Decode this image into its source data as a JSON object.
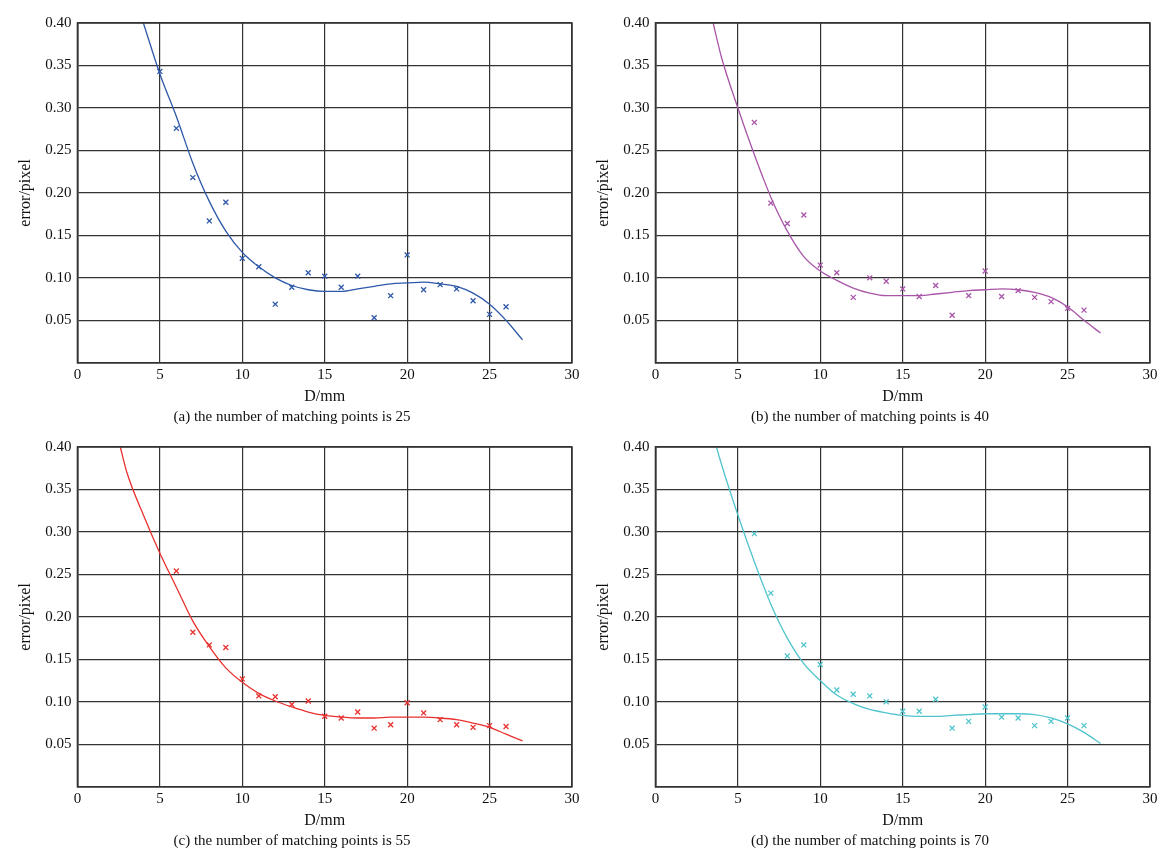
{
  "chart_data": [
    {
      "type": "scatter",
      "title": "(a) the number of matching points is 25",
      "xlabel": "D/mm",
      "ylabel": "error/pixel",
      "xlim": [
        0,
        30
      ],
      "xticks": [
        0,
        5,
        10,
        15,
        20,
        25,
        30
      ],
      "ylim": [
        0,
        0.4
      ],
      "yticks": [
        {
          "value": 0.05,
          "label": "0.05"
        },
        {
          "value": 0.1,
          "label": "0.10"
        },
        {
          "value": 0.15,
          "label": "0.15"
        },
        {
          "value": 0.2,
          "label": "0.20"
        },
        {
          "value": 0.25,
          "label": "0.25"
        },
        {
          "value": 0.3,
          "label": "0.30"
        },
        {
          "value": 0.35,
          "label": "0.35"
        },
        {
          "value": 0.4,
          "label": "0.40"
        }
      ],
      "grid": true,
      "legend": false,
      "series": [
        {
          "type": "scatter",
          "marker": "cross",
          "color": "#2e58a8",
          "x": [
            5,
            6,
            7,
            8,
            9,
            10,
            11,
            12,
            13,
            14,
            15,
            16,
            17,
            18,
            19,
            20,
            21,
            22,
            23,
            24,
            25,
            26
          ],
          "values": [
            0.343,
            0.276,
            0.218,
            0.167,
            0.189,
            0.123,
            0.113,
            0.069,
            0.089,
            0.106,
            0.102,
            0.089,
            0.102,
            0.053,
            0.079,
            0.127,
            0.086,
            0.092,
            0.087,
            0.073,
            0.057,
            0.066
          ]
        },
        {
          "type": "line",
          "marker": "none",
          "color": "#2e58a8",
          "x": [
            4,
            5,
            6,
            7,
            8,
            9,
            10,
            11,
            12,
            13,
            14,
            15,
            16,
            17,
            18,
            19,
            20,
            21,
            22,
            23,
            24,
            25,
            26,
            27
          ],
          "values": [
            0.4,
            0.34,
            0.29,
            0.235,
            0.19,
            0.155,
            0.13,
            0.113,
            0.1,
            0.091,
            0.086,
            0.084,
            0.084,
            0.087,
            0.09,
            0.093,
            0.094,
            0.095,
            0.093,
            0.09,
            0.082,
            0.069,
            0.05,
            0.027
          ]
        }
      ]
    },
    {
      "type": "scatter",
      "title": "(b) the number of matching points is 40",
      "xlabel": "D/mm",
      "ylabel": "error/pixel",
      "xlim": [
        0,
        30
      ],
      "xticks": [
        0,
        5,
        10,
        15,
        20,
        25,
        30
      ],
      "ylim": [
        0,
        0.4
      ],
      "yticks": [
        {
          "value": 0.05,
          "label": "0.05"
        },
        {
          "value": 0.1,
          "label": "0.10"
        },
        {
          "value": 0.15,
          "label": "0.15"
        },
        {
          "value": 0.2,
          "label": "0.20"
        },
        {
          "value": 0.25,
          "label": "0.25"
        },
        {
          "value": 0.3,
          "label": "0.30"
        },
        {
          "value": 0.35,
          "label": "0.35"
        },
        {
          "value": 0.4,
          "label": "0.40"
        }
      ],
      "grid": true,
      "legend": false,
      "series": [
        {
          "type": "scatter",
          "marker": "cross",
          "color": "#a855a8",
          "x": [
            6,
            7,
            8,
            9,
            10,
            11,
            12,
            13,
            14,
            15,
            16,
            17,
            18,
            19,
            20,
            21,
            22,
            23,
            24,
            25,
            26
          ],
          "values": [
            0.283,
            0.188,
            0.164,
            0.174,
            0.115,
            0.106,
            0.077,
            0.1,
            0.096,
            0.087,
            0.078,
            0.091,
            0.056,
            0.079,
            0.108,
            0.078,
            0.085,
            0.077,
            0.072,
            0.064,
            0.062
          ]
        },
        {
          "type": "line",
          "marker": "none",
          "color": "#a855a8",
          "x": [
            3.5,
            4,
            5,
            6,
            7,
            8,
            9,
            10,
            11,
            12,
            13,
            14,
            15,
            16,
            17,
            18,
            19,
            20,
            21,
            22,
            23,
            24,
            25,
            26,
            27
          ],
          "values": [
            0.4,
            0.36,
            0.3,
            0.245,
            0.195,
            0.155,
            0.125,
            0.108,
            0.097,
            0.088,
            0.082,
            0.079,
            0.079,
            0.079,
            0.081,
            0.083,
            0.085,
            0.086,
            0.087,
            0.086,
            0.083,
            0.077,
            0.066,
            0.05,
            0.035
          ]
        }
      ]
    },
    {
      "type": "scatter",
      "title": "(c) the number of matching points is 55",
      "xlabel": "D/mm",
      "ylabel": "error/pixel",
      "xlim": [
        0,
        30
      ],
      "xticks": [
        0,
        5,
        10,
        15,
        20,
        25,
        30
      ],
      "ylim": [
        0,
        0.4
      ],
      "yticks": [
        {
          "value": 0.05,
          "label": "0.05"
        },
        {
          "value": 0.1,
          "label": "0.10"
        },
        {
          "value": 0.15,
          "label": "0.15"
        },
        {
          "value": 0.2,
          "label": "0.20"
        },
        {
          "value": 0.25,
          "label": "0.25"
        },
        {
          "value": 0.3,
          "label": "0.30"
        },
        {
          "value": 0.35,
          "label": "0.35"
        },
        {
          "value": 0.4,
          "label": "0.40"
        }
      ],
      "grid": true,
      "legend": false,
      "series": [
        {
          "type": "scatter",
          "marker": "cross",
          "color": "#e8312f",
          "x": [
            6,
            7,
            8,
            9,
            10,
            11,
            12,
            13,
            14,
            15,
            16,
            17,
            18,
            19,
            20,
            21,
            22,
            23,
            24,
            25,
            26
          ],
          "values": [
            0.254,
            0.182,
            0.167,
            0.164,
            0.127,
            0.107,
            0.106,
            0.097,
            0.101,
            0.083,
            0.081,
            0.088,
            0.069,
            0.073,
            0.099,
            0.087,
            0.079,
            0.073,
            0.07,
            0.072,
            0.071
          ]
        },
        {
          "type": "line",
          "marker": "none",
          "color": "#e8312f",
          "x": [
            2.6,
            3,
            4,
            5,
            6,
            7,
            8,
            9,
            10,
            11,
            12,
            13,
            14,
            15,
            16,
            17,
            18,
            19,
            20,
            21,
            22,
            23,
            24,
            25,
            26,
            27
          ],
          "values": [
            0.4,
            0.37,
            0.32,
            0.275,
            0.235,
            0.195,
            0.165,
            0.14,
            0.123,
            0.11,
            0.101,
            0.094,
            0.088,
            0.084,
            0.082,
            0.081,
            0.081,
            0.082,
            0.082,
            0.082,
            0.081,
            0.079,
            0.075,
            0.07,
            0.062,
            0.054
          ]
        }
      ]
    },
    {
      "type": "scatter",
      "title": "(d) the number of matching points is 70",
      "xlabel": "D/mm",
      "ylabel": "error/pixel",
      "xlim": [
        0,
        30
      ],
      "xticks": [
        0,
        5,
        10,
        15,
        20,
        25,
        30
      ],
      "ylim": [
        0,
        0.4
      ],
      "yticks": [
        {
          "value": 0.05,
          "label": "0.05"
        },
        {
          "value": 0.1,
          "label": "0.10"
        },
        {
          "value": 0.15,
          "label": "0.15"
        },
        {
          "value": 0.2,
          "label": "0.20"
        },
        {
          "value": 0.25,
          "label": "0.25"
        },
        {
          "value": 0.3,
          "label": "0.30"
        },
        {
          "value": 0.35,
          "label": "0.35"
        },
        {
          "value": 0.4,
          "label": "0.40"
        }
      ],
      "grid": true,
      "legend": false,
      "series": [
        {
          "type": "scatter",
          "marker": "cross",
          "color": "#4fc4cc",
          "x": [
            6,
            7,
            8,
            9,
            10,
            11,
            12,
            13,
            14,
            15,
            16,
            17,
            18,
            19,
            20,
            21,
            22,
            23,
            24,
            25,
            26
          ],
          "values": [
            0.298,
            0.228,
            0.154,
            0.167,
            0.144,
            0.114,
            0.109,
            0.107,
            0.1,
            0.089,
            0.089,
            0.103,
            0.069,
            0.077,
            0.094,
            0.082,
            0.081,
            0.072,
            0.077,
            0.081,
            0.072
          ]
        },
        {
          "type": "line",
          "marker": "none",
          "color": "#4fc4cc",
          "x": [
            3.7,
            4,
            5,
            6,
            7,
            8,
            9,
            10,
            11,
            12,
            13,
            14,
            15,
            16,
            17,
            18,
            19,
            20,
            21,
            22,
            23,
            24,
            25,
            26,
            27
          ],
          "values": [
            0.4,
            0.38,
            0.32,
            0.265,
            0.215,
            0.175,
            0.145,
            0.125,
            0.108,
            0.098,
            0.091,
            0.087,
            0.084,
            0.083,
            0.083,
            0.084,
            0.085,
            0.086,
            0.086,
            0.086,
            0.085,
            0.081,
            0.074,
            0.064,
            0.051
          ]
        }
      ]
    }
  ]
}
